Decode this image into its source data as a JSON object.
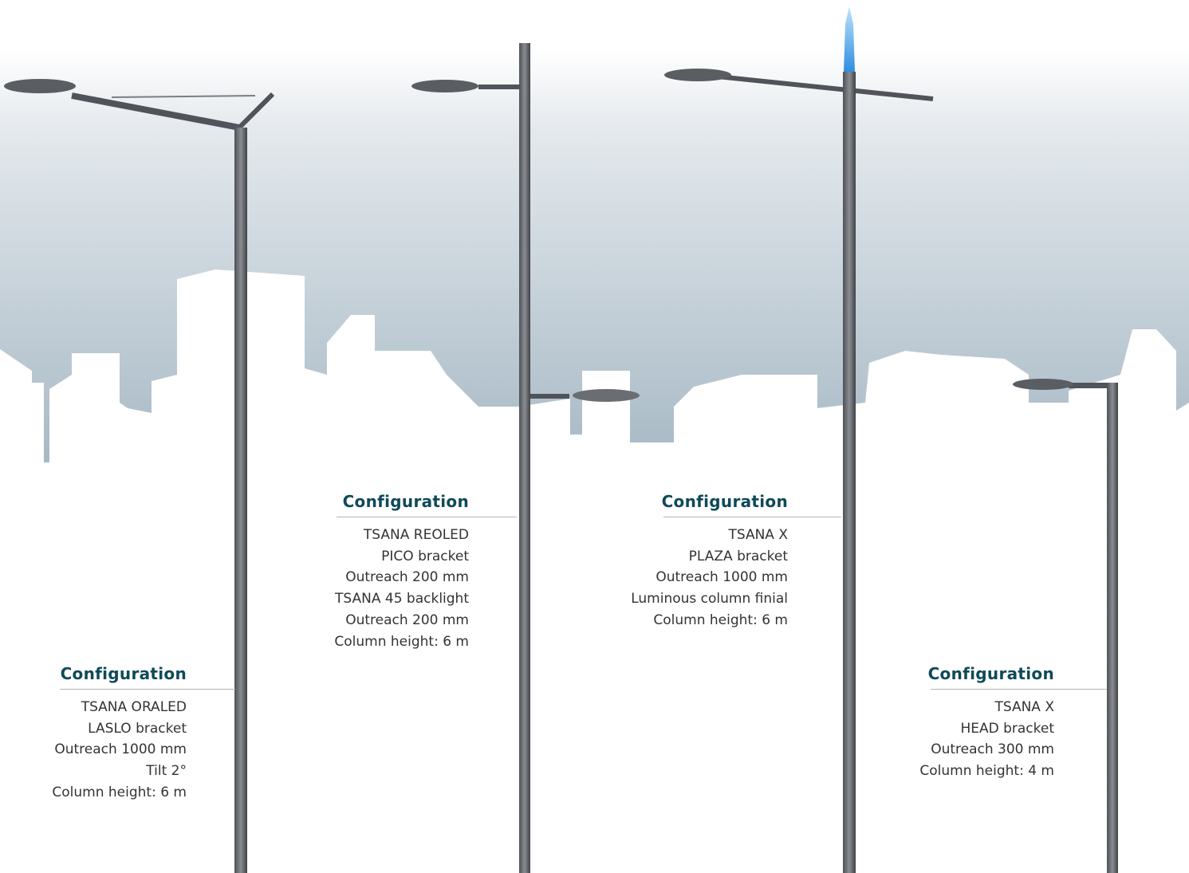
{
  "configurations": [
    {
      "title": "Configuration",
      "lines": [
        "TSANA ORALED",
        "LASLO bracket",
        "Outreach 1000 mm",
        "Tilt 2°",
        "Column height: 6 m"
      ]
    },
    {
      "title": "Configuration",
      "lines": [
        "TSANA REOLED",
        "PICO bracket",
        "Outreach 200 mm",
        "TSANA 45 backlight",
        "Outreach 200 mm",
        "Column height: 6 m"
      ]
    },
    {
      "title": "Configuration",
      "lines": [
        "TSANA X",
        "PLAZA bracket",
        "Outreach 1000 mm",
        "Luminous column finial",
        "Column height: 6 m"
      ]
    },
    {
      "title": "Configuration",
      "lines": [
        "TSANA X",
        "HEAD bracket",
        "Outreach 300 mm",
        "Column height: 4 m"
      ]
    }
  ]
}
